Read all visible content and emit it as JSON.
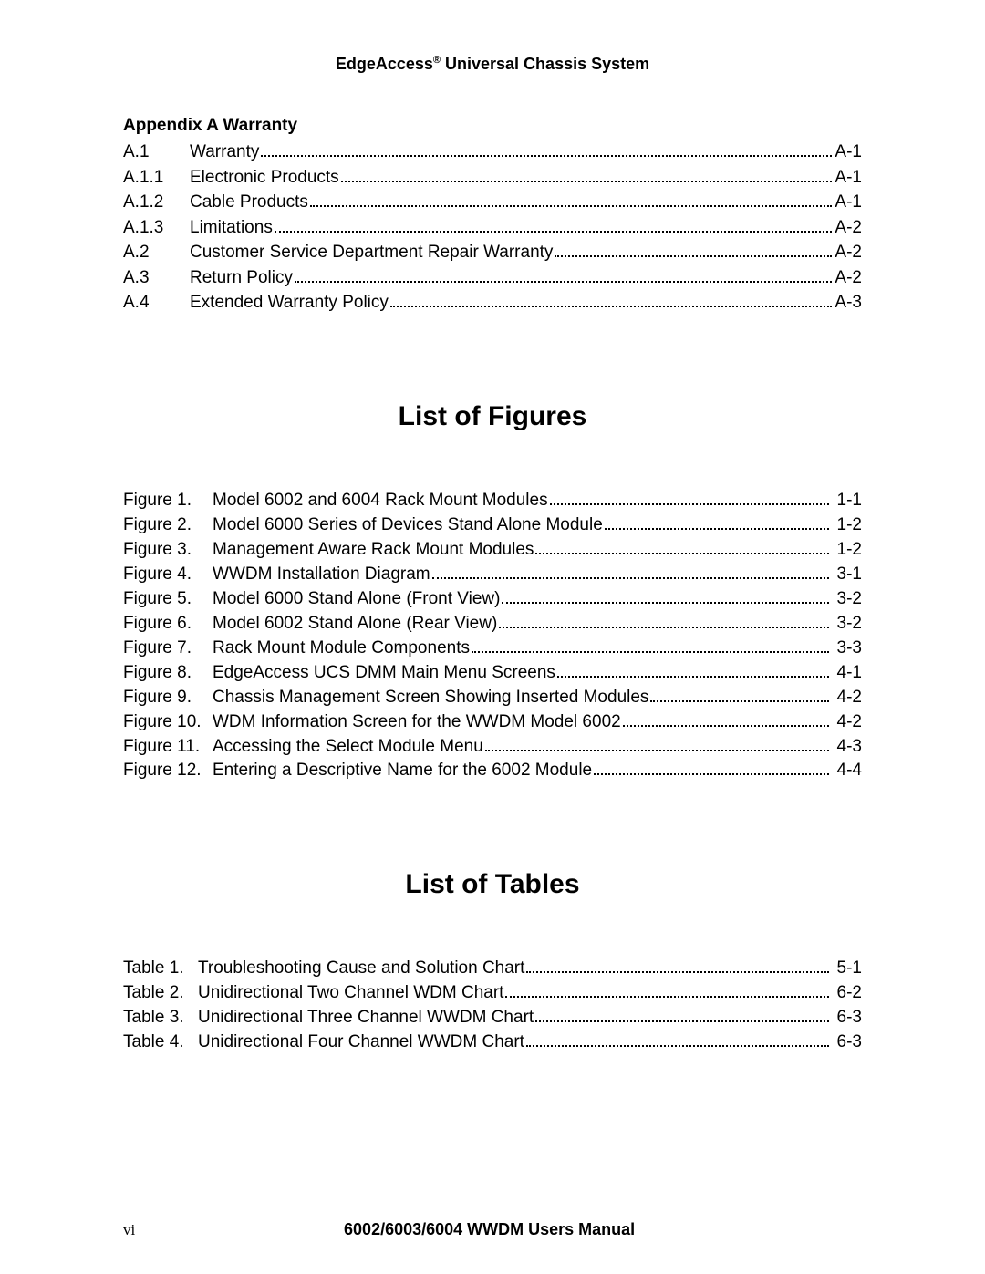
{
  "header": {
    "brand": "EdgeAccess",
    "reg": "®",
    "product": " Universal Chassis System"
  },
  "appendix": {
    "title": "Appendix A  Warranty",
    "items": [
      {
        "num": "A.1",
        "text": "Warranty",
        "page": "A-1"
      },
      {
        "num": "A.1.1",
        "text": "Electronic Products",
        "page": "A-1"
      },
      {
        "num": "A.1.2",
        "text": "Cable Products",
        "page": "A-1"
      },
      {
        "num": "A.1.3",
        "text": "Limitations",
        "page": "A-2"
      },
      {
        "num": "A.2",
        "text": "Customer Service Department Repair Warranty",
        "page": "A-2"
      },
      {
        "num": "A.3",
        "text": "Return Policy",
        "page": "A-2"
      },
      {
        "num": "A.4",
        "text": "Extended Warranty Policy",
        "page": "A-3"
      }
    ]
  },
  "figures": {
    "title": "List of Figures",
    "items": [
      {
        "num": "Figure 1.",
        "text": "Model 6002 and 6004 Rack Mount Modules ",
        "page": "1-1"
      },
      {
        "num": "Figure 2.",
        "text": "Model 6000 Series of Devices Stand Alone Module ",
        "page": "1-2"
      },
      {
        "num": "Figure 3.",
        "text": "Management Aware Rack Mount Modules ",
        "page": "1-2"
      },
      {
        "num": "Figure 4.",
        "text": "WWDM Installation Diagram ",
        "page": "3-1"
      },
      {
        "num": "Figure 5.",
        "text": "Model 6000 Stand Alone (Front View) ",
        "page": "3-2"
      },
      {
        "num": "Figure 6.",
        "text": "Model 6002 Stand Alone (Rear View)",
        "page": "3-2"
      },
      {
        "num": "Figure 7.",
        "text": "Rack Mount Module Components ",
        "page": "3-3"
      },
      {
        "num": "Figure 8.",
        "text": "EdgeAccess UCS DMM Main Menu Screens ",
        "page": "4-1"
      },
      {
        "num": "Figure 9.",
        "text": "Chassis Management Screen Showing Inserted Modules ",
        "page": "4-2"
      },
      {
        "num": "Figure 10.",
        "text": "WDM Information Screen for the WWDM Model 6002 ",
        "page": "4-2"
      },
      {
        "num": "Figure 11.",
        "text": "Accessing the Select Module Menu ",
        "page": "4-3"
      },
      {
        "num": "Figure 12.",
        "text": "Entering a Descriptive Name for the 6002 Module ",
        "page": "4-4"
      }
    ]
  },
  "tables": {
    "title": "List of Tables",
    "items": [
      {
        "num": "Table 1.",
        "text": "Troubleshooting Cause and Solution Chart ",
        "page": "5-1"
      },
      {
        "num": "Table 2.",
        "text": "Unidirectional Two Channel WDM Chart ",
        "page": "6-2"
      },
      {
        "num": "Table 3.",
        "text": "Unidirectional Three Channel WWDM Chart ",
        "page": "6-3"
      },
      {
        "num": "Table 4.",
        "text": "Unidirectional Four Channel WWDM Chart ",
        "page": "6-3"
      }
    ]
  },
  "footer": {
    "pagenum": "vi",
    "title": "6002/6003/6004 WWDM Users Manual"
  }
}
